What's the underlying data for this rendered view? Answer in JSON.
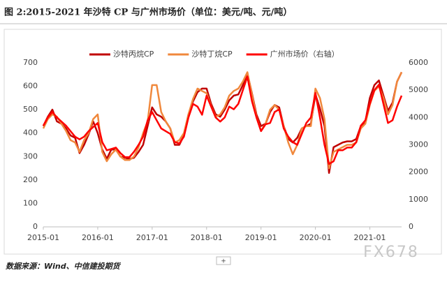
{
  "title": "图 2:2015-2021 年沙特 CP 与广州市场价（单位：美元/吨、元/吨）",
  "source": "数据来源：Wind、中信建投期货",
  "watermark": "FX678",
  "chart_data": {
    "type": "line",
    "categories": [
      "2015-01",
      null,
      null,
      null,
      null,
      null,
      null,
      null,
      null,
      null,
      null,
      null,
      "2016-01",
      null,
      null,
      null,
      null,
      null,
      null,
      null,
      null,
      null,
      null,
      null,
      "2017-01",
      null,
      null,
      null,
      null,
      null,
      null,
      null,
      null,
      null,
      null,
      null,
      "2018-01",
      null,
      null,
      null,
      null,
      null,
      null,
      null,
      null,
      null,
      null,
      null,
      "2019-01",
      null,
      null,
      null,
      null,
      null,
      null,
      null,
      null,
      null,
      null,
      null,
      "2020-01",
      null,
      null,
      null,
      null,
      null,
      null,
      null,
      null,
      null,
      null,
      null,
      "2021-01",
      null,
      null,
      null,
      null,
      null,
      null,
      null
    ],
    "series": [
      {
        "name": "沙特丙烷CP",
        "color": "#c00000",
        "values": [
          430,
          470,
          500,
          450,
          440,
          420,
          390,
          380,
          315,
          350,
          395,
          450,
          400,
          330,
          290,
          330,
          330,
          300,
          295,
          290,
          295,
          320,
          350,
          430,
          510,
          480,
          470,
          450,
          420,
          350,
          350,
          390,
          480,
          535,
          575,
          590,
          590,
          525,
          480,
          470,
          500,
          540,
          560,
          565,
          605,
          655,
          570,
          480,
          430,
          440,
          490,
          520,
          510,
          430,
          375,
          360,
          380,
          420,
          430,
          440,
          565,
          505,
          430,
          230,
          340,
          350,
          360,
          365,
          365,
          375,
          430,
          450,
          550,
          605,
          625,
          560,
          495,
          530,
          620,
          660
        ]
      },
      {
        "name": "沙特丁烷CP",
        "color": "#f0883c",
        "values": [
          420,
          460,
          480,
          470,
          440,
          410,
          370,
          360,
          320,
          370,
          400,
          460,
          480,
          320,
          280,
          310,
          330,
          300,
          285,
          285,
          300,
          340,
          400,
          450,
          605,
          605,
          490,
          450,
          420,
          360,
          370,
          400,
          480,
          545,
          590,
          580,
          570,
          515,
          470,
          480,
          510,
          560,
          580,
          590,
          620,
          660,
          565,
          470,
          410,
          440,
          500,
          520,
          500,
          430,
          360,
          310,
          350,
          420,
          430,
          430,
          590,
          550,
          460,
          250,
          320,
          330,
          340,
          350,
          350,
          360,
          420,
          440,
          520,
          580,
          600,
          550,
          480,
          520,
          620,
          660
        ]
      },
      {
        "name": "广州市场价（右轴）",
        "color": "#ff0000",
        "axis": "y2",
        "values": [
          3700,
          4000,
          4200,
          4000,
          3850,
          3700,
          3500,
          3300,
          3200,
          3300,
          3500,
          3650,
          3800,
          3100,
          2800,
          2850,
          2900,
          2700,
          2550,
          2550,
          2750,
          3000,
          3300,
          3900,
          4200,
          3900,
          3600,
          3500,
          3400,
          3100,
          3050,
          3300,
          4000,
          4500,
          4400,
          4100,
          4800,
          4400,
          4000,
          3850,
          4000,
          4400,
          4300,
          4500,
          5000,
          5500,
          4600,
          4000,
          3500,
          3750,
          3800,
          4200,
          4300,
          3600,
          3300,
          3100,
          3000,
          3400,
          3800,
          4000,
          4900,
          4000,
          3000,
          2300,
          2400,
          2800,
          2800,
          2900,
          2900,
          3100,
          3700,
          3900,
          4500,
          5000,
          5200,
          4500,
          3800,
          3900,
          4400,
          4800
        ]
      }
    ],
    "ylim": [
      0,
      700
    ],
    "yticks": [
      0,
      100,
      200,
      300,
      400,
      500,
      600,
      700
    ],
    "y2lim": [
      0,
      6000
    ],
    "y2ticks": [
      0,
      1000,
      2000,
      3000,
      4000,
      5000,
      6000
    ],
    "grid": false,
    "legend": "top"
  }
}
